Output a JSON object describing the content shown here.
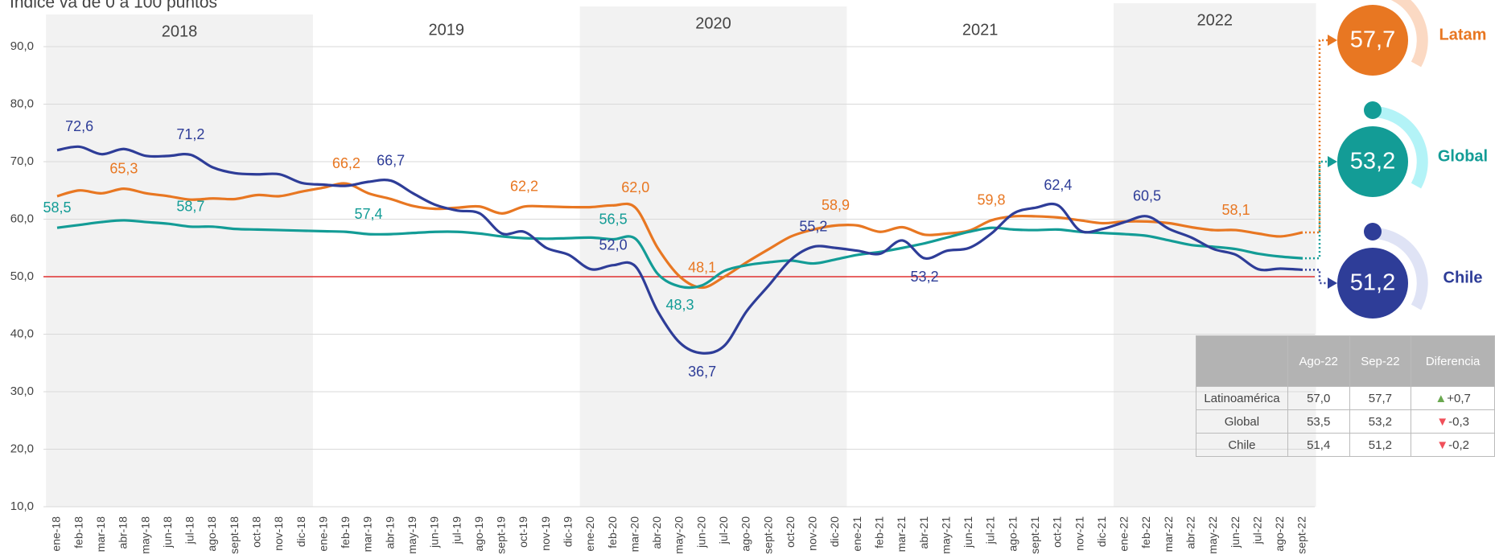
{
  "chart_data": {
    "type": "line",
    "subtitle": "Índice va de 0 a 100 puntos",
    "categories": [
      "ene-18",
      "feb-18",
      "mar-18",
      "abr-18",
      "may-18",
      "jun-18",
      "jul-18",
      "ago-18",
      "sept-18",
      "oct-18",
      "nov-18",
      "dic-18",
      "ene-19",
      "feb-19",
      "mar-19",
      "abr-19",
      "may-19",
      "jun-19",
      "jul-19",
      "ago-19",
      "sept-19",
      "oct-19",
      "nov-19",
      "dic-19",
      "ene-20",
      "feb-20",
      "mar-20",
      "abr-20",
      "may-20",
      "jun-20",
      "jul-20",
      "ago-20",
      "sept-20",
      "oct-20",
      "nov-20",
      "dic-20",
      "ene-21",
      "feb-21",
      "mar-21",
      "abr-21",
      "may-21",
      "jun-21",
      "jul-21",
      "ago-21",
      "sept-21",
      "oct-21",
      "nov-21",
      "dic-21",
      "ene-22",
      "feb-22",
      "mar-22",
      "abr-22",
      "may-22",
      "jun-22",
      "jul-22",
      "ago-22",
      "sept-22"
    ],
    "year_groups": [
      "2018",
      "2019",
      "2020",
      "2021",
      "2022"
    ],
    "series": [
      {
        "name": "Latam",
        "color": "#e87722",
        "current_label": "57,7",
        "values": [
          64.0,
          65.0,
          64.5,
          65.3,
          64.5,
          64.0,
          63.4,
          63.6,
          63.5,
          64.2,
          64.0,
          64.8,
          65.5,
          66.2,
          64.5,
          63.5,
          62.3,
          61.8,
          62.0,
          62.2,
          61.0,
          62.2,
          62.2,
          62.1,
          62.1,
          62.4,
          62.0,
          55.0,
          50.0,
          48.1,
          50.0,
          52.5,
          54.8,
          57.0,
          58.2,
          58.9,
          58.9,
          57.8,
          58.6,
          57.3,
          57.5,
          58.0,
          59.8,
          60.5,
          60.5,
          60.3,
          59.8,
          59.3,
          59.6,
          59.6,
          59.3,
          58.6,
          58.1,
          58.1,
          57.5,
          57.0,
          57.7
        ],
        "value_labels": [
          null,
          null,
          null,
          "65,3",
          null,
          null,
          null,
          null,
          null,
          null,
          null,
          null,
          null,
          "66,2",
          null,
          null,
          null,
          null,
          null,
          null,
          null,
          "62,2",
          null,
          null,
          null,
          null,
          "62,0",
          null,
          null,
          "48,1",
          null,
          null,
          null,
          null,
          null,
          "58,9",
          null,
          null,
          null,
          null,
          null,
          null,
          "59,8",
          null,
          null,
          null,
          null,
          null,
          null,
          null,
          null,
          null,
          null,
          "58,1",
          null,
          null,
          null
        ]
      },
      {
        "name": "Global",
        "color": "#139c96",
        "current_label": "53,2",
        "values": [
          58.5,
          59.0,
          59.5,
          59.8,
          59.5,
          59.2,
          58.7,
          58.7,
          58.3,
          58.2,
          58.1,
          58.0,
          57.9,
          57.8,
          57.4,
          57.4,
          57.6,
          57.8,
          57.8,
          57.5,
          57.0,
          56.7,
          56.6,
          56.7,
          56.8,
          56.5,
          56.6,
          50.5,
          48.3,
          48.5,
          51.0,
          52.0,
          52.5,
          52.8,
          52.3,
          53.0,
          53.8,
          54.3,
          55.0,
          55.8,
          56.8,
          57.8,
          58.5,
          58.2,
          58.1,
          58.2,
          57.8,
          57.6,
          57.4,
          57.1,
          56.3,
          55.5,
          55.2,
          54.8,
          54.0,
          53.5,
          53.2
        ],
        "value_labels": [
          "58,5",
          null,
          null,
          null,
          null,
          null,
          "58,7",
          null,
          null,
          null,
          null,
          null,
          null,
          null,
          "57,4",
          null,
          null,
          null,
          null,
          null,
          null,
          null,
          null,
          null,
          null,
          "56,5",
          null,
          null,
          "48,3",
          null,
          null,
          null,
          null,
          null,
          null,
          null,
          null,
          null,
          null,
          null,
          null,
          null,
          null,
          null,
          null,
          null,
          null,
          null,
          null,
          null,
          null,
          null,
          null,
          null,
          null,
          null,
          null
        ]
      },
      {
        "name": "Chile",
        "color": "#2e3d98",
        "current_label": "51,2",
        "values": [
          72.0,
          72.6,
          71.3,
          72.2,
          71.0,
          71.0,
          71.2,
          69.0,
          68.0,
          67.8,
          67.8,
          66.3,
          66.0,
          65.8,
          66.5,
          66.7,
          64.5,
          62.5,
          61.5,
          61.0,
          57.5,
          57.8,
          55.0,
          53.8,
          51.3,
          52.0,
          51.8,
          44.0,
          38.5,
          36.7,
          38.0,
          44.0,
          48.5,
          53.0,
          55.2,
          55.0,
          54.5,
          54.0,
          56.3,
          53.2,
          54.5,
          55.0,
          57.5,
          61.0,
          62.0,
          62.4,
          58.0,
          58.3,
          59.5,
          60.5,
          58.3,
          56.8,
          54.8,
          53.8,
          51.3,
          51.4,
          51.2
        ],
        "value_labels": [
          null,
          "72,6",
          null,
          null,
          null,
          null,
          "71,2",
          null,
          null,
          null,
          null,
          null,
          null,
          null,
          null,
          "66,7",
          null,
          null,
          null,
          null,
          null,
          null,
          null,
          null,
          null,
          "52,0",
          null,
          null,
          null,
          "36,7",
          null,
          null,
          null,
          null,
          "55,2",
          null,
          null,
          null,
          null,
          "53,2",
          null,
          null,
          null,
          null,
          null,
          "62,4",
          null,
          null,
          null,
          "60,5",
          null,
          null,
          null,
          null,
          null,
          null,
          null
        ]
      }
    ],
    "ylim": [
      10,
      90
    ],
    "yticks": [
      {
        "value": 10,
        "label": "10,0"
      },
      {
        "value": 20,
        "label": "20,0"
      },
      {
        "value": 30,
        "label": "30,0"
      },
      {
        "value": 40,
        "label": "40,0"
      },
      {
        "value": 50,
        "label": "50,0"
      },
      {
        "value": 60,
        "label": "60,0"
      },
      {
        "value": 70,
        "label": "70,0"
      },
      {
        "value": 80,
        "label": "80,0"
      },
      {
        "value": 90,
        "label": "90,0"
      }
    ],
    "grid": true,
    "reference_line": 50,
    "reference_color": "#e03030"
  },
  "table": {
    "columns": [
      "Ago-22",
      "Sep-22",
      "Diferencia"
    ],
    "rows": [
      [
        "Latinoamérica",
        "57,0",
        "57,7",
        "+0,7"
      ],
      [
        "Global",
        "53,5",
        "53,2",
        "-0,3"
      ],
      [
        "Chile",
        "51,4",
        "51,2",
        "-0,2"
      ]
    ]
  }
}
